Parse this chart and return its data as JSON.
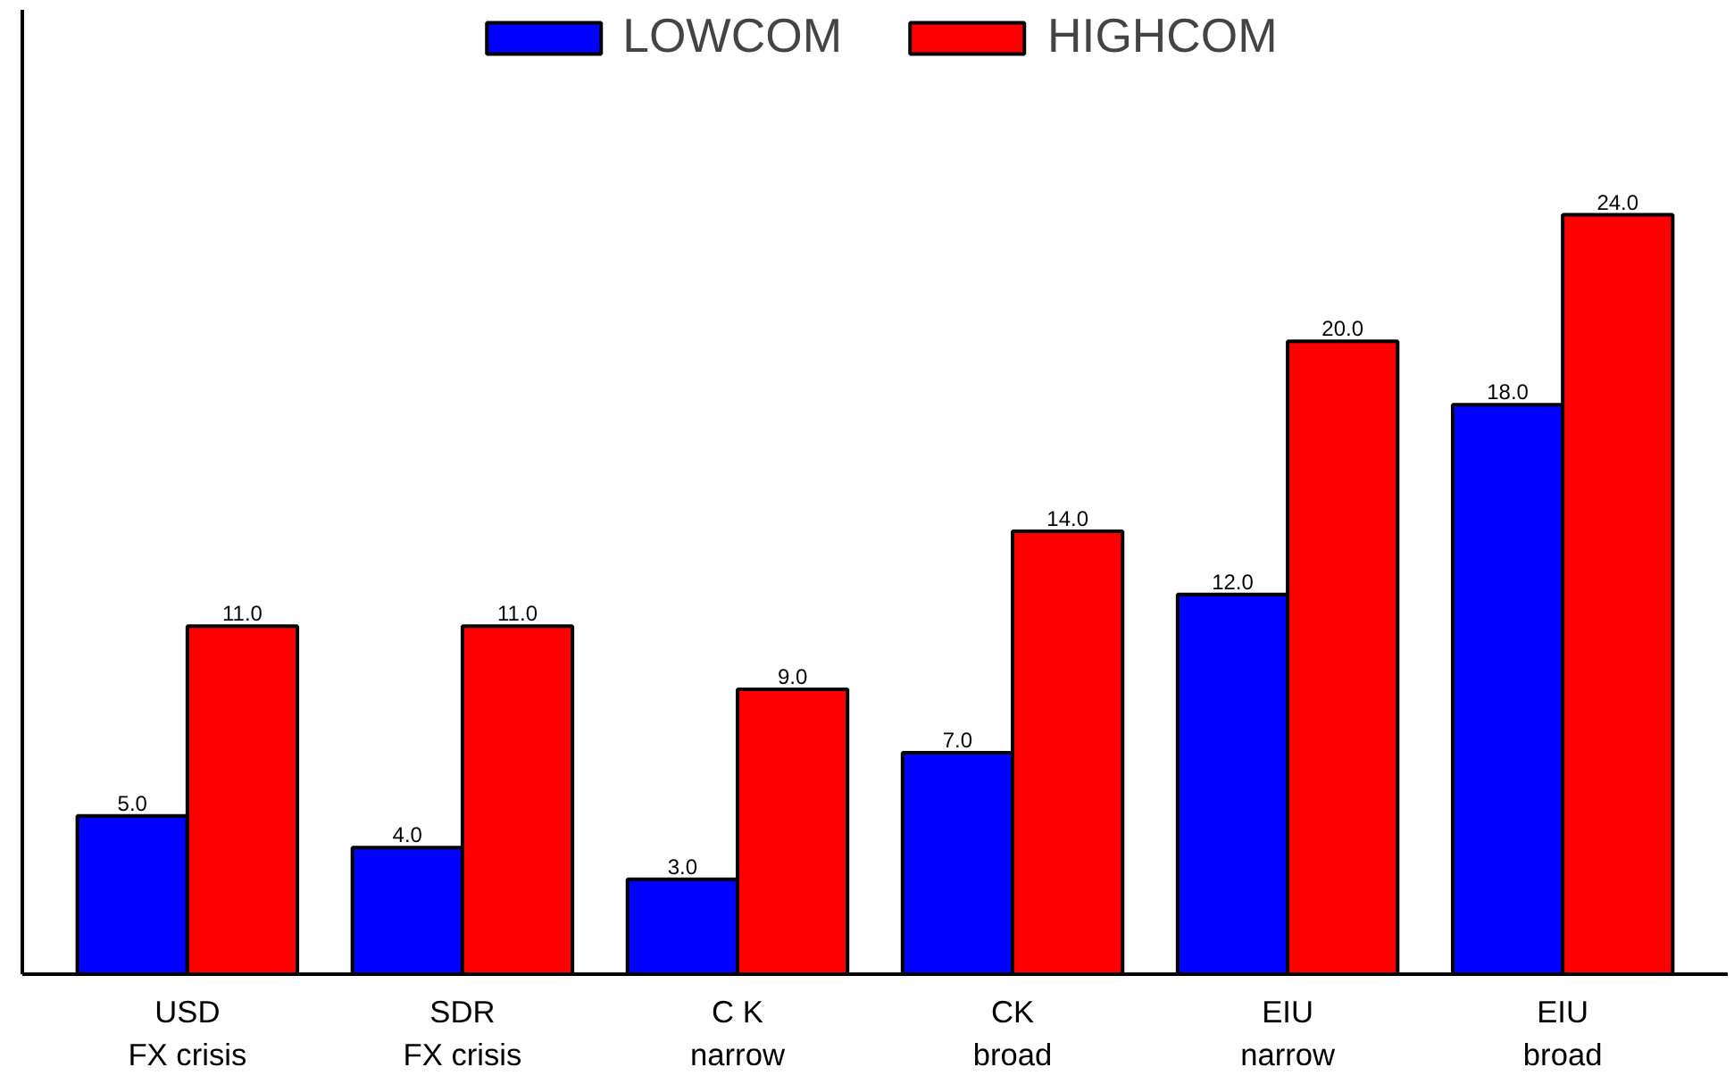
{
  "chart_data": {
    "type": "bar",
    "categories": [
      "USD\nFX crisis",
      "SDR\nFX crisis",
      "C K\nnarrow",
      "CK\nbroad",
      "EIU\nnarrow",
      "EIU\nbroad"
    ],
    "series": [
      {
        "name": "LOWCOM",
        "color": "#0000ff",
        "values": [
          5.0,
          4.0,
          3.0,
          7.0,
          12.0,
          18.0
        ],
        "value_labels": [
          "5.0",
          "4.0",
          "3.0",
          "7.0",
          "12.0",
          "18.0"
        ]
      },
      {
        "name": "HIGHCOM",
        "color": "#ff0000",
        "values": [
          11.0,
          11.0,
          9.0,
          14.0,
          20.0,
          24.0
        ],
        "value_labels": [
          "11.0",
          "11.0",
          "9.0",
          "14.0",
          "20.0",
          "24.0"
        ]
      }
    ],
    "grid": false,
    "legend": "top"
  }
}
